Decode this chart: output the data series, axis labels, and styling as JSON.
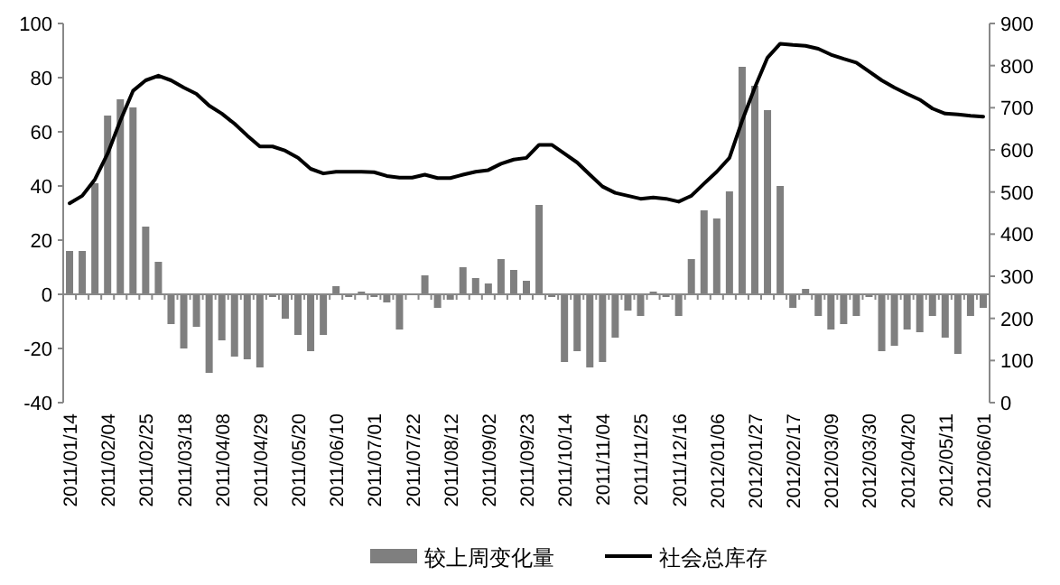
{
  "chart_data": {
    "type": "bar",
    "categories": [
      "2011/01/14",
      null,
      null,
      "2011/02/04",
      null,
      null,
      "2011/02/25",
      null,
      null,
      "2011/03/18",
      null,
      null,
      "2011/04/08",
      null,
      null,
      "2011/04/29",
      null,
      null,
      "2011/05/20",
      null,
      null,
      "2011/06/10",
      null,
      null,
      "2011/07/01",
      null,
      null,
      "2011/07/22",
      null,
      null,
      "2011/08/12",
      null,
      null,
      "2011/09/02",
      null,
      null,
      "2011/09/23",
      null,
      null,
      "2011/10/14",
      null,
      null,
      "2011/11/04",
      null,
      null,
      "2011/11/25",
      null,
      null,
      "2011/12/16",
      null,
      null,
      "2012/01/06",
      null,
      null,
      "2012/01/27",
      null,
      null,
      "2012/02/17",
      null,
      null,
      "2012/03/09",
      null,
      null,
      "2012/03/30",
      null,
      null,
      "2012/04/20",
      null,
      null,
      "2012/05/11",
      null,
      null,
      "2012/06/01"
    ],
    "series": [
      {
        "name": "较上周变化量",
        "color": "#7f7f7f",
        "values": [
          16,
          16,
          41,
          66,
          72,
          69,
          25,
          12,
          -11,
          -20,
          -12,
          -29,
          -17,
          -23,
          -24,
          -27,
          -1,
          -9,
          -15,
          -21,
          -15,
          3,
          -1,
          1,
          -1,
          -3,
          -13,
          0,
          7,
          -5,
          -2,
          10,
          6,
          4,
          13,
          9,
          5,
          33,
          -1,
          -25,
          -21,
          -27,
          -25,
          -16,
          -6,
          -8,
          1,
          -1,
          -8,
          13,
          31,
          28,
          38,
          84,
          77,
          68,
          40,
          -5,
          2,
          -8,
          -13,
          -11,
          -8,
          -1,
          -21,
          -19,
          -13,
          -14,
          -8,
          -16,
          -22,
          -8,
          -5
        ]
      },
      {
        "name": "社会总库存",
        "type": "line",
        "axis": "y2",
        "color": "#000000",
        "values": [
          473,
          491,
          530,
          591,
          669,
          740,
          765,
          776,
          765,
          748,
          733,
          705,
          686,
          662,
          634,
          608,
          608,
          598,
          581,
          555,
          544,
          548,
          548,
          548,
          547,
          538,
          534,
          534,
          541,
          533,
          533,
          541,
          548,
          552,
          567,
          577,
          581,
          612,
          612,
          591,
          570,
          541,
          513,
          498,
          491,
          484,
          487,
          484,
          477,
          491,
          520,
          548,
          581,
          669,
          748,
          819,
          852,
          849,
          847,
          840,
          826,
          816,
          807,
          786,
          765,
          748,
          733,
          719,
          698,
          686,
          684,
          681,
          679
        ]
      }
    ],
    "ylim": [
      -40,
      100
    ],
    "yticks": [
      -40,
      -20,
      0,
      20,
      40,
      60,
      80,
      100
    ],
    "y2lim": [
      0,
      900
    ],
    "y2ticks": [
      0,
      100,
      200,
      300,
      400,
      500,
      600,
      700,
      800,
      900
    ],
    "legend": "bottom"
  }
}
